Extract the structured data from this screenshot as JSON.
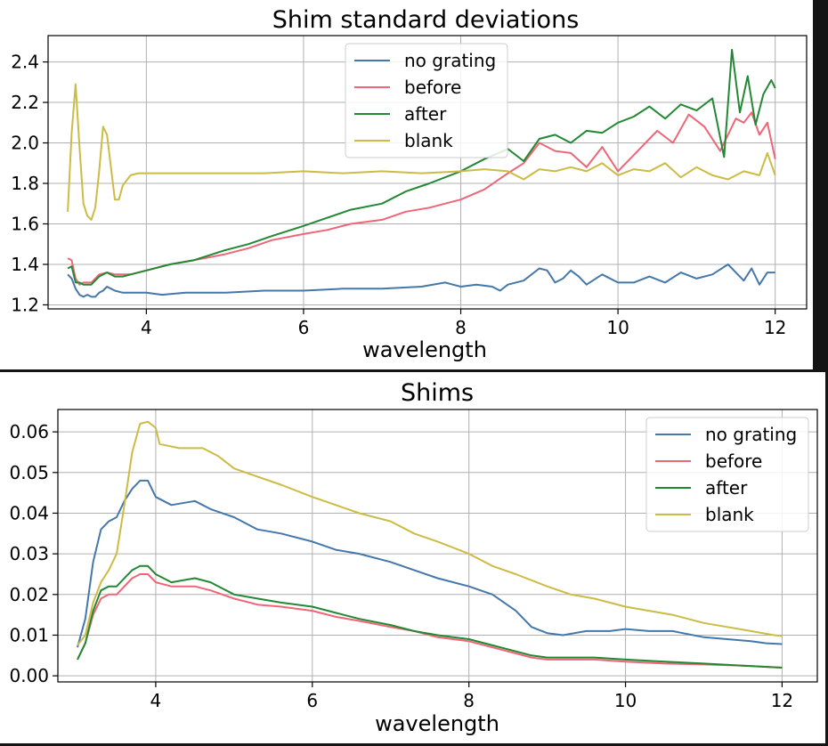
{
  "colors": {
    "no_grating": "#4477aa",
    "before": "#ee6677",
    "after": "#228833",
    "blank": "#ccbb44"
  },
  "chart_data": [
    {
      "type": "line",
      "title": "Shim standard deviations",
      "xlabel": "wavelength",
      "ylabel": "",
      "xlim": [
        2.75,
        12.4
      ],
      "ylim": [
        1.18,
        2.53
      ],
      "xticks": [
        4,
        6,
        8,
        10,
        12
      ],
      "yticks": [
        1.2,
        1.4,
        1.6,
        1.8,
        2.0,
        2.2,
        2.4
      ],
      "ytick_format": 1,
      "grid": true,
      "legend_position": "top-center",
      "series": [
        {
          "name": "no grating",
          "color_key": "no_grating",
          "x": [
            3.0,
            3.05,
            3.1,
            3.15,
            3.2,
            3.25,
            3.3,
            3.35,
            3.4,
            3.45,
            3.5,
            3.6,
            3.7,
            3.8,
            3.9,
            4.0,
            4.2,
            4.5,
            5.0,
            5.5,
            6.0,
            6.5,
            7.0,
            7.5,
            7.8,
            8.0,
            8.2,
            8.4,
            8.5,
            8.6,
            8.8,
            9.0,
            9.1,
            9.2,
            9.3,
            9.4,
            9.5,
            9.6,
            9.8,
            10.0,
            10.2,
            10.4,
            10.6,
            10.8,
            11.0,
            11.2,
            11.4,
            11.5,
            11.6,
            11.7,
            11.8,
            11.9,
            12.0
          ],
          "y": [
            1.35,
            1.33,
            1.28,
            1.25,
            1.24,
            1.25,
            1.24,
            1.24,
            1.26,
            1.27,
            1.29,
            1.27,
            1.26,
            1.26,
            1.26,
            1.26,
            1.25,
            1.26,
            1.26,
            1.27,
            1.27,
            1.28,
            1.28,
            1.29,
            1.31,
            1.29,
            1.3,
            1.29,
            1.27,
            1.3,
            1.32,
            1.38,
            1.37,
            1.31,
            1.33,
            1.37,
            1.34,
            1.3,
            1.35,
            1.31,
            1.31,
            1.34,
            1.31,
            1.36,
            1.33,
            1.35,
            1.4,
            1.36,
            1.32,
            1.38,
            1.3,
            1.36,
            1.36
          ]
        },
        {
          "name": "before",
          "color_key": "before",
          "x": [
            3.0,
            3.05,
            3.1,
            3.15,
            3.2,
            3.3,
            3.4,
            3.5,
            3.6,
            3.7,
            3.8,
            4.0,
            4.3,
            4.6,
            5.0,
            5.3,
            5.6,
            6.0,
            6.3,
            6.6,
            7.0,
            7.3,
            7.6,
            8.0,
            8.3,
            8.6,
            8.8,
            9.0,
            9.2,
            9.4,
            9.6,
            9.8,
            10.0,
            10.2,
            10.4,
            10.5,
            10.7,
            10.9,
            11.1,
            11.3,
            11.5,
            11.6,
            11.7,
            11.8,
            11.9,
            12.0
          ],
          "y": [
            1.43,
            1.42,
            1.33,
            1.3,
            1.31,
            1.31,
            1.35,
            1.36,
            1.35,
            1.35,
            1.35,
            1.37,
            1.4,
            1.42,
            1.45,
            1.48,
            1.52,
            1.55,
            1.57,
            1.6,
            1.62,
            1.66,
            1.68,
            1.72,
            1.77,
            1.85,
            1.9,
            2.0,
            1.96,
            1.95,
            1.88,
            1.98,
            1.86,
            1.94,
            2.02,
            2.06,
            2.0,
            2.14,
            2.08,
            1.96,
            2.12,
            2.1,
            2.15,
            2.04,
            2.1,
            1.92
          ]
        },
        {
          "name": "after",
          "color_key": "after",
          "x": [
            3.0,
            3.05,
            3.1,
            3.15,
            3.2,
            3.3,
            3.4,
            3.5,
            3.6,
            3.7,
            3.8,
            4.0,
            4.3,
            4.6,
            5.0,
            5.3,
            5.6,
            6.0,
            6.3,
            6.6,
            7.0,
            7.3,
            7.6,
            8.0,
            8.3,
            8.6,
            8.8,
            9.0,
            9.2,
            9.4,
            9.6,
            9.8,
            10.0,
            10.2,
            10.4,
            10.6,
            10.8,
            11.0,
            11.2,
            11.35,
            11.45,
            11.55,
            11.65,
            11.75,
            11.85,
            11.95,
            12.0
          ],
          "y": [
            1.38,
            1.39,
            1.31,
            1.31,
            1.3,
            1.3,
            1.34,
            1.36,
            1.34,
            1.34,
            1.35,
            1.37,
            1.4,
            1.42,
            1.47,
            1.5,
            1.54,
            1.59,
            1.63,
            1.67,
            1.7,
            1.76,
            1.8,
            1.86,
            1.92,
            1.97,
            1.91,
            2.02,
            2.04,
            2.0,
            2.06,
            2.05,
            2.1,
            2.13,
            2.18,
            2.12,
            2.19,
            2.16,
            2.22,
            1.93,
            2.46,
            2.15,
            2.33,
            2.09,
            2.24,
            2.31,
            2.27
          ]
        },
        {
          "name": "blank",
          "color_key": "blank",
          "x": [
            3.0,
            3.05,
            3.1,
            3.15,
            3.2,
            3.25,
            3.3,
            3.35,
            3.4,
            3.45,
            3.5,
            3.55,
            3.6,
            3.65,
            3.7,
            3.8,
            3.9,
            4.0,
            4.2,
            4.5,
            5.0,
            5.5,
            6.0,
            6.5,
            7.0,
            7.5,
            8.0,
            8.3,
            8.6,
            8.8,
            9.0,
            9.2,
            9.4,
            9.6,
            9.8,
            10.0,
            10.2,
            10.4,
            10.6,
            10.8,
            11.0,
            11.2,
            11.4,
            11.6,
            11.8,
            11.9,
            12.0
          ],
          "y": [
            1.66,
            2.05,
            2.29,
            1.98,
            1.7,
            1.64,
            1.62,
            1.68,
            1.86,
            2.08,
            2.04,
            1.88,
            1.72,
            1.72,
            1.79,
            1.84,
            1.85,
            1.85,
            1.85,
            1.85,
            1.85,
            1.85,
            1.86,
            1.85,
            1.86,
            1.85,
            1.86,
            1.87,
            1.86,
            1.82,
            1.87,
            1.86,
            1.88,
            1.86,
            1.9,
            1.84,
            1.87,
            1.86,
            1.9,
            1.83,
            1.88,
            1.84,
            1.82,
            1.86,
            1.84,
            1.95,
            1.84
          ]
        }
      ]
    },
    {
      "type": "line",
      "title": "Shims",
      "xlabel": "wavelength",
      "ylabel": "",
      "xlim": [
        2.75,
        12.45
      ],
      "ylim": [
        -0.0015,
        0.0655
      ],
      "xticks": [
        4,
        6,
        8,
        10,
        12
      ],
      "yticks": [
        0.0,
        0.01,
        0.02,
        0.03,
        0.04,
        0.05,
        0.06
      ],
      "ytick_format": 2,
      "grid": true,
      "legend_position": "top-right",
      "series": [
        {
          "name": "no grating",
          "color_key": "no_grating",
          "x": [
            3.0,
            3.1,
            3.2,
            3.3,
            3.4,
            3.5,
            3.6,
            3.7,
            3.8,
            3.9,
            4.0,
            4.2,
            4.5,
            4.7,
            5.0,
            5.3,
            5.6,
            6.0,
            6.3,
            6.6,
            7.0,
            7.3,
            7.6,
            8.0,
            8.3,
            8.6,
            8.8,
            9.0,
            9.2,
            9.5,
            9.8,
            10.0,
            10.3,
            10.6,
            11.0,
            11.3,
            11.6,
            11.8,
            12.0
          ],
          "y": [
            0.007,
            0.014,
            0.028,
            0.036,
            0.038,
            0.039,
            0.043,
            0.046,
            0.048,
            0.048,
            0.044,
            0.042,
            0.043,
            0.041,
            0.039,
            0.036,
            0.035,
            0.033,
            0.031,
            0.03,
            0.028,
            0.026,
            0.024,
            0.022,
            0.02,
            0.016,
            0.012,
            0.0105,
            0.01,
            0.011,
            0.011,
            0.0115,
            0.011,
            0.011,
            0.0095,
            0.009,
            0.0085,
            0.008,
            0.0078
          ]
        },
        {
          "name": "before",
          "color_key": "before",
          "x": [
            3.0,
            3.1,
            3.2,
            3.3,
            3.4,
            3.5,
            3.6,
            3.7,
            3.8,
            3.9,
            4.0,
            4.2,
            4.5,
            4.7,
            5.0,
            5.3,
            5.6,
            6.0,
            6.3,
            6.6,
            7.0,
            7.3,
            7.6,
            8.0,
            8.3,
            8.6,
            8.8,
            9.0,
            9.3,
            9.6,
            10.0,
            10.5,
            11.0,
            11.5,
            12.0
          ],
          "y": [
            0.004,
            0.008,
            0.015,
            0.019,
            0.02,
            0.02,
            0.022,
            0.024,
            0.025,
            0.025,
            0.023,
            0.022,
            0.022,
            0.021,
            0.019,
            0.0175,
            0.017,
            0.016,
            0.0145,
            0.0135,
            0.012,
            0.011,
            0.0095,
            0.0085,
            0.007,
            0.0055,
            0.0045,
            0.004,
            0.004,
            0.004,
            0.0035,
            0.003,
            0.0028,
            0.0025,
            0.002
          ]
        },
        {
          "name": "after",
          "color_key": "after",
          "x": [
            3.0,
            3.1,
            3.2,
            3.3,
            3.4,
            3.5,
            3.6,
            3.7,
            3.8,
            3.9,
            4.0,
            4.2,
            4.5,
            4.7,
            5.0,
            5.3,
            5.6,
            6.0,
            6.3,
            6.6,
            7.0,
            7.3,
            7.6,
            8.0,
            8.3,
            8.6,
            8.8,
            9.0,
            9.3,
            9.6,
            10.0,
            10.5,
            11.0,
            11.5,
            12.0
          ],
          "y": [
            0.004,
            0.008,
            0.016,
            0.021,
            0.022,
            0.022,
            0.024,
            0.026,
            0.027,
            0.027,
            0.025,
            0.023,
            0.024,
            0.023,
            0.02,
            0.019,
            0.018,
            0.017,
            0.0155,
            0.014,
            0.0125,
            0.011,
            0.01,
            0.009,
            0.0075,
            0.006,
            0.005,
            0.0045,
            0.0045,
            0.0045,
            0.004,
            0.0035,
            0.003,
            0.0025,
            0.002
          ]
        },
        {
          "name": "blank",
          "color_key": "blank",
          "x": [
            3.0,
            3.1,
            3.2,
            3.3,
            3.4,
            3.5,
            3.6,
            3.7,
            3.8,
            3.9,
            4.0,
            4.05,
            4.3,
            4.6,
            4.8,
            5.0,
            5.3,
            5.6,
            6.0,
            6.3,
            6.6,
            7.0,
            7.3,
            7.6,
            8.0,
            8.3,
            8.6,
            9.0,
            9.3,
            9.6,
            10.0,
            10.3,
            10.6,
            11.0,
            11.3,
            11.6,
            11.9,
            12.0
          ],
          "y": [
            0.0075,
            0.01,
            0.018,
            0.023,
            0.026,
            0.03,
            0.042,
            0.055,
            0.062,
            0.0625,
            0.061,
            0.057,
            0.056,
            0.056,
            0.054,
            0.051,
            0.049,
            0.047,
            0.044,
            0.042,
            0.04,
            0.038,
            0.035,
            0.033,
            0.03,
            0.027,
            0.025,
            0.022,
            0.02,
            0.019,
            0.017,
            0.016,
            0.015,
            0.013,
            0.012,
            0.011,
            0.01,
            0.0098
          ]
        }
      ]
    }
  ]
}
